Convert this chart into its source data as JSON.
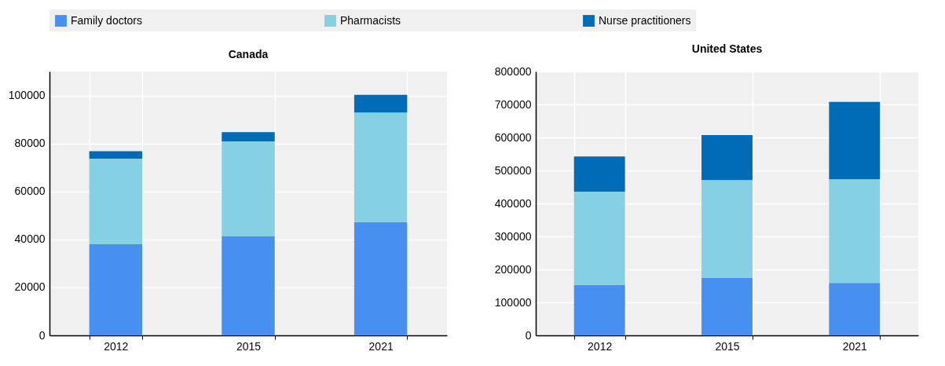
{
  "chart_data": [
    {
      "type": "bar",
      "title": "Canada",
      "categories": [
        "2012",
        "2015",
        "2021"
      ],
      "stacked": true,
      "grid": true,
      "legend": "top",
      "ylim": [
        0,
        110000
      ],
      "yticks": [
        0,
        20000,
        40000,
        60000,
        80000,
        100000
      ],
      "series": [
        {
          "name": "Family doctors",
          "color": "#4790f2",
          "values": [
            38000,
            41400,
            47200
          ]
        },
        {
          "name": "Pharmacists",
          "color": "#85d0e3",
          "values": [
            35700,
            39500,
            45700
          ]
        },
        {
          "name": "Nurse practitioners",
          "color": "#006bb6",
          "values": [
            3100,
            3800,
            7400
          ]
        }
      ]
    },
    {
      "type": "bar",
      "title": "United States",
      "categories": [
        "2012",
        "2015",
        "2021"
      ],
      "stacked": true,
      "grid": true,
      "legend": "top",
      "ylim": [
        0,
        800000
      ],
      "yticks": [
        0,
        100000,
        200000,
        300000,
        400000,
        500000,
        600000,
        700000,
        800000
      ],
      "series": [
        {
          "name": "Family doctors",
          "color": "#4790f2",
          "values": [
            153000,
            175000,
            159000
          ]
        },
        {
          "name": "Pharmacists",
          "color": "#85d0e3",
          "values": [
            283000,
            296000,
            314000
          ]
        },
        {
          "name": "Nurse practitioners",
          "color": "#006bb6",
          "values": [
            106000,
            136000,
            235000
          ]
        }
      ]
    }
  ]
}
